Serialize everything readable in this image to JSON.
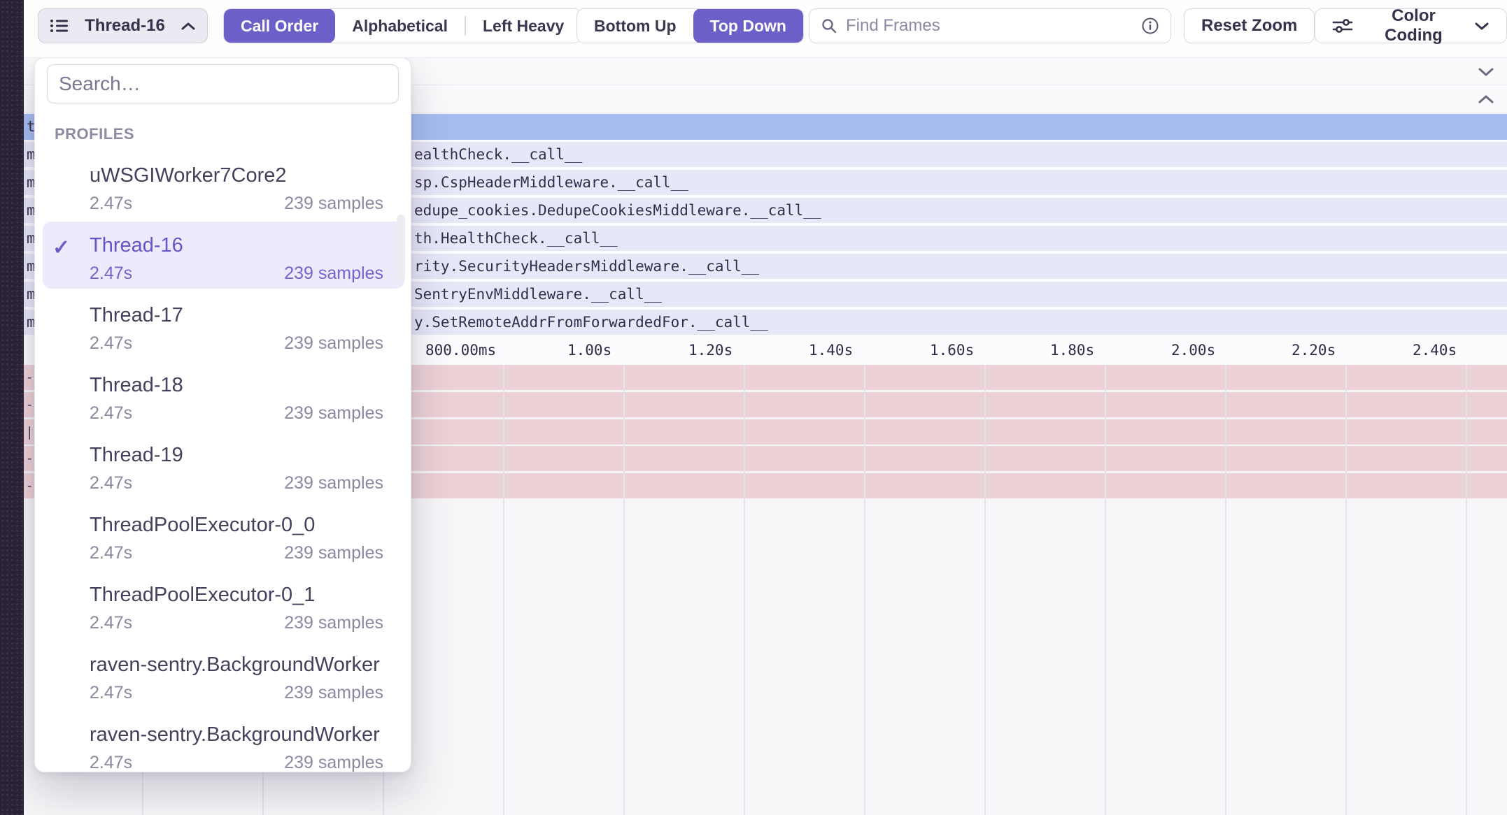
{
  "toolbar": {
    "thread_selector": {
      "label": "Thread-16"
    },
    "sort_control": {
      "options": [
        "Call Order",
        "Alphabetical",
        "Left Heavy"
      ],
      "selected": "Call Order"
    },
    "direction_control": {
      "options": [
        "Bottom Up",
        "Top Down"
      ],
      "selected": "Top Down"
    },
    "find_frames": {
      "placeholder": "Find Frames"
    },
    "reset_zoom_label": "Reset Zoom",
    "color_coding_label": "Color Coding"
  },
  "profiles_dropdown": {
    "search_placeholder": "Search…",
    "section_label": "PROFILES",
    "items": [
      {
        "name": "uWSGIWorker7Core2",
        "duration": "2.47s",
        "samples": "239 samples",
        "selected": false
      },
      {
        "name": "Thread-16",
        "duration": "2.47s",
        "samples": "239 samples",
        "selected": true
      },
      {
        "name": "Thread-17",
        "duration": "2.47s",
        "samples": "239 samples",
        "selected": false
      },
      {
        "name": "Thread-18",
        "duration": "2.47s",
        "samples": "239 samples",
        "selected": false
      },
      {
        "name": "Thread-19",
        "duration": "2.47s",
        "samples": "239 samples",
        "selected": false
      },
      {
        "name": "ThreadPoolExecutor-0_0",
        "duration": "2.47s",
        "samples": "239 samples",
        "selected": false
      },
      {
        "name": "ThreadPoolExecutor-0_1",
        "duration": "2.47s",
        "samples": "239 samples",
        "selected": false
      },
      {
        "name": "raven-sentry.BackgroundWorker",
        "duration": "2.47s",
        "samples": "239 samples",
        "selected": false
      },
      {
        "name": "raven-sentry.BackgroundWorker",
        "duration": "2.47s",
        "samples": "239 samples",
        "selected": false
      }
    ]
  },
  "flamegraph": {
    "selected_row_fragment": "t",
    "rows": [
      {
        "fragment": "m",
        "label": "ealthCheck.__call__"
      },
      {
        "fragment": "m",
        "label": "sp.CspHeaderMiddleware.__call__"
      },
      {
        "fragment": "m",
        "label": "edupe_cookies.DedupeCookiesMiddleware.__call__"
      },
      {
        "fragment": "m",
        "label": "th.HealthCheck.__call__"
      },
      {
        "fragment": "m",
        "label": "rity.SecurityHeadersMiddleware.__call__"
      },
      {
        "fragment": "m",
        "label": "SentryEnvMiddleware.__call__"
      },
      {
        "fragment": "m",
        "label": "y.SetRemoteAddrFromForwardedFor.__call__"
      }
    ],
    "axis_ticks": [
      "800.00ms",
      "1.00s",
      "1.20s",
      "1.40s",
      "1.60s",
      "1.80s",
      "2.00s",
      "2.20s",
      "2.40s"
    ],
    "pink_row_fragments": [
      "-",
      "-",
      "|",
      "-",
      "-"
    ]
  },
  "colors": {
    "accent": "#6C5FC7",
    "selected_frame_row": "#a5bdf0",
    "frame_row": "#e6e8f8",
    "pink_row": "#ecd1d6",
    "sidebar_edge": "#2a2235"
  }
}
